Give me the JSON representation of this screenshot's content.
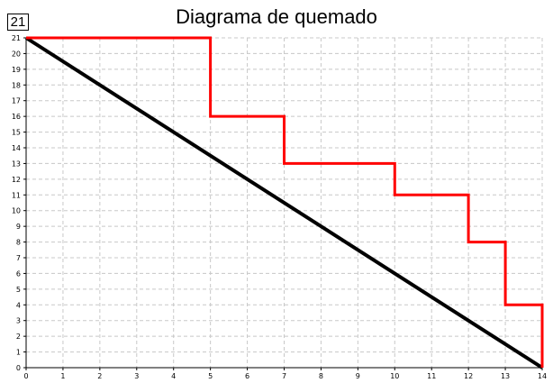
{
  "chart_data": {
    "type": "line",
    "title": "Diagrama de quemado",
    "current_value_badge": "21",
    "xlabel": "",
    "ylabel": "",
    "xlim": [
      0,
      14
    ],
    "ylim": [
      0,
      21
    ],
    "grid": true,
    "x_ticks": [
      "0",
      "1",
      "2",
      "3",
      "4",
      "5",
      "6",
      "7",
      "8",
      "9",
      "10",
      "11",
      "12",
      "13",
      "14"
    ],
    "y_ticks": [
      "0",
      "1",
      "2",
      "3",
      "4",
      "5",
      "6",
      "7",
      "8",
      "9",
      "10",
      "11",
      "12",
      "13",
      "14",
      "15",
      "16",
      "17",
      "18",
      "19",
      "20",
      "21"
    ],
    "series": [
      {
        "color": "#000000",
        "points": [
          [
            0,
            21
          ],
          [
            14,
            0
          ]
        ]
      },
      {
        "color": "#ff0000",
        "points": [
          [
            0,
            21
          ],
          [
            5,
            21
          ],
          [
            5,
            16
          ],
          [
            7,
            16
          ],
          [
            7,
            13
          ],
          [
            10,
            13
          ],
          [
            10,
            11
          ],
          [
            12,
            11
          ],
          [
            12,
            8
          ],
          [
            13,
            8
          ],
          [
            13,
            4
          ],
          [
            14,
            4
          ],
          [
            14,
            0
          ]
        ]
      }
    ]
  }
}
